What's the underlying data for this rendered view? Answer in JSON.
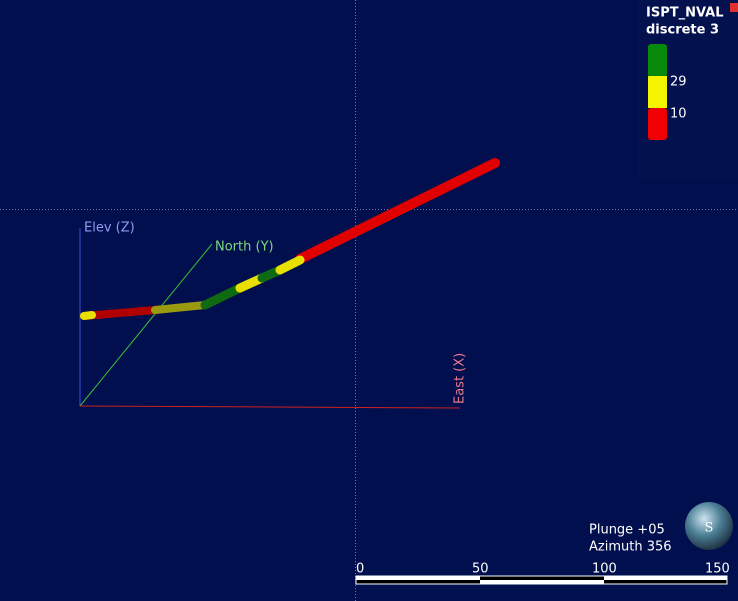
{
  "legend": {
    "title": "ISPT_NVAL",
    "subtitle": "discrete 3",
    "labels": [
      "29",
      "10"
    ]
  },
  "axes": {
    "z": "Elev (Z)",
    "y": "North (Y)",
    "x": "East (X)"
  },
  "view": {
    "plunge": "Plunge +05",
    "azimuth": "Azimuth 356"
  },
  "scale_bar": {
    "labels": [
      "0",
      "50",
      "100",
      "150"
    ]
  },
  "compass": "S"
}
